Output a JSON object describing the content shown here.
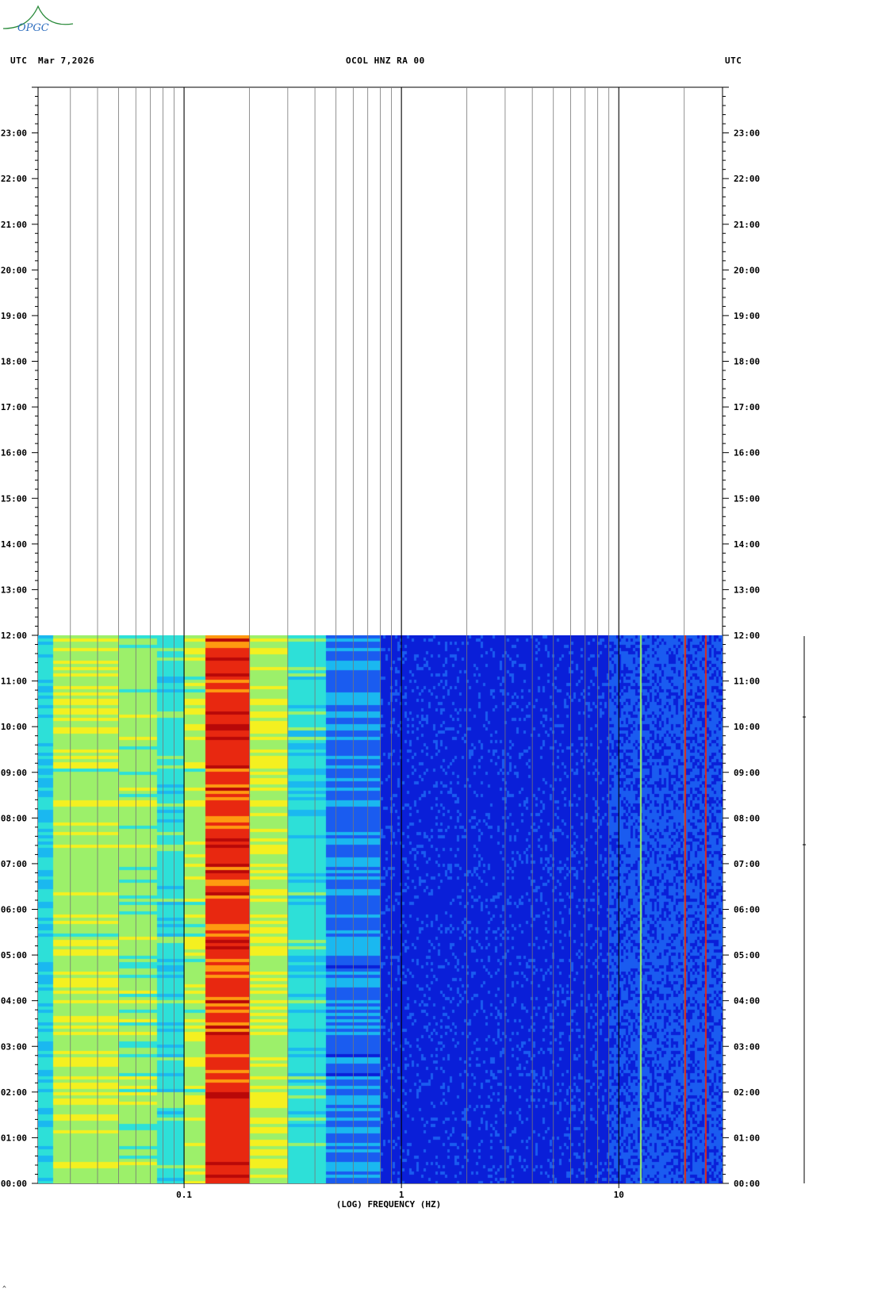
{
  "logo": {
    "text": "OPGC",
    "color": "#2a8a3a",
    "text_color": "#2f6fbf"
  },
  "header": {
    "left_utc": "UTC",
    "date": "Mar 7,2026",
    "station": "OCOL HNZ RA 00",
    "right_utc": "UTC"
  },
  "chart_data": {
    "type": "heatmap",
    "title": "OCOL HNZ RA 00",
    "xlabel": "(LOG) FREQUENCY (HZ)",
    "ylabel": "UTC",
    "x_scale": "log",
    "xlim": [
      0.0213,
      30
    ],
    "ylim": [
      "00:00",
      "24:00"
    ],
    "x_tick_labels": [
      "0.1",
      "1",
      "10"
    ],
    "x_ticks": [
      0.1,
      1,
      10
    ],
    "y_tick_labels": [
      "00:00",
      "01:00",
      "02:00",
      "03:00",
      "04:00",
      "05:00",
      "06:00",
      "07:00",
      "08:00",
      "09:00",
      "10:00",
      "11:00",
      "12:00",
      "13:00",
      "14:00",
      "15:00",
      "16:00",
      "17:00",
      "18:00",
      "19:00",
      "20:00",
      "21:00",
      "22:00",
      "23:00"
    ],
    "data_time_range_hours": [
      0,
      12
    ],
    "colormap": [
      "#0a1fd8",
      "#1a5cf0",
      "#1ab8f0",
      "#2de0d8",
      "#9cf06a",
      "#f4f020",
      "#ff9a10",
      "#e82810",
      "#b80808"
    ],
    "bands": [
      {
        "freq_hz": [
          0.0213,
          0.025
        ],
        "level": 2.6
      },
      {
        "freq_hz": [
          0.025,
          0.05
        ],
        "level": 4.3
      },
      {
        "freq_hz": [
          0.05,
          0.075
        ],
        "level": 3.9
      },
      {
        "freq_hz": [
          0.075,
          0.1
        ],
        "level": 3.0
      },
      {
        "freq_hz": [
          0.1,
          0.125
        ],
        "level": 4.2
      },
      {
        "freq_hz": [
          0.125,
          0.2
        ],
        "level": 6.9
      },
      {
        "freq_hz": [
          0.2,
          0.3
        ],
        "level": 4.4
      },
      {
        "freq_hz": [
          0.3,
          0.45
        ],
        "level": 2.9
      },
      {
        "freq_hz": [
          0.45,
          0.8
        ],
        "level": 1.3
      },
      {
        "freq_hz": [
          0.8,
          9
        ],
        "level": 0.25
      },
      {
        "freq_hz": [
          9,
          30
        ],
        "level": 0.7
      }
    ],
    "narrow_lines_hz": [
      12.5,
      20,
      25
    ],
    "grid": true
  }
}
